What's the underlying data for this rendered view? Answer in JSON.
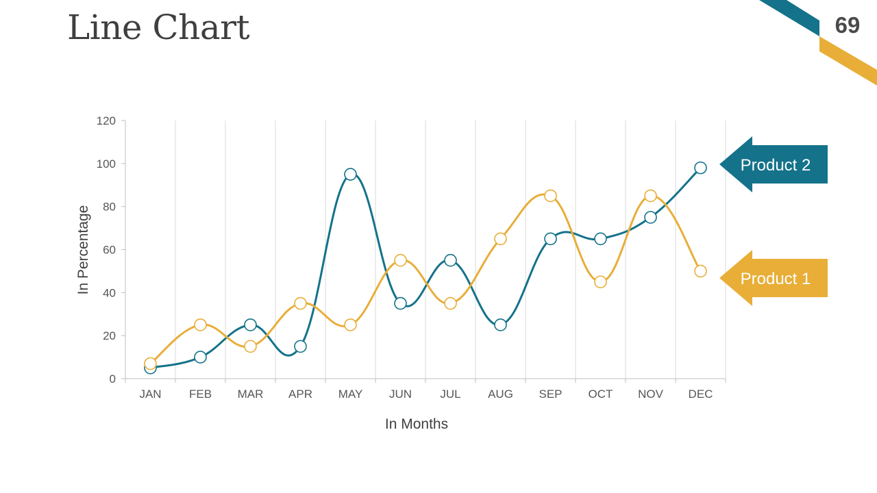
{
  "slide": {
    "title": "Line Chart",
    "page_number": "69"
  },
  "colors": {
    "product_1": "#e8ae38",
    "product_2": "#14728a",
    "grid": "#d9d9d9",
    "axis": "#bfbfbf"
  },
  "chart_data": {
    "type": "line",
    "categories": [
      "JAN",
      "FEB",
      "MAR",
      "APR",
      "MAY",
      "JUN",
      "JUL",
      "AUG",
      "SEP",
      "OCT",
      "NOV",
      "DEC"
    ],
    "series": [
      {
        "name": "Product 2",
        "color": "#14728a",
        "values": [
          5,
          10,
          25,
          15,
          95,
          35,
          55,
          25,
          65,
          65,
          75,
          98
        ]
      },
      {
        "name": "Product 1",
        "color": "#e8ae38",
        "values": [
          7,
          25,
          15,
          35,
          25,
          55,
          35,
          65,
          85,
          45,
          85,
          50
        ]
      }
    ],
    "xlabel": "In Months",
    "ylabel": "In Percentage",
    "ylim": [
      0,
      120
    ],
    "yticks": [
      0,
      20,
      40,
      60,
      80,
      100,
      120
    ],
    "grid": "vertical",
    "legend": "right, as arrow callouts"
  }
}
